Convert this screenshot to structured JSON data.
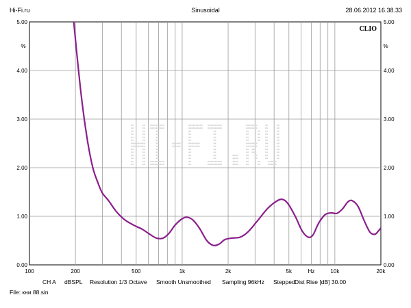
{
  "header": {
    "site": "Hi-Fi.ru",
    "mode": "Sinusoidal",
    "datetime": "28.06.2012 16.38.33"
  },
  "brand": "CLIO",
  "watermark": "HI-FI.RU",
  "footer": {
    "ch": "CH A",
    "unit": "dBSPL",
    "resolution": "Resolution 1/3 Octave",
    "smooth": "Smooth Unsmoothed",
    "sampling": "Sampling 96kHz",
    "stepped": "Stepped",
    "dist_rise": "Dist Rise [dB] 30.00",
    "file": "File: кни 88.sin"
  },
  "chart_data": {
    "type": "line",
    "xscale": "log",
    "xlim": [
      100,
      20000
    ],
    "ylim": [
      0,
      5
    ],
    "y_unit_label": "%",
    "x_unit_label": "Hz",
    "x_tick_labels": [
      {
        "value": 100,
        "label": "100"
      },
      {
        "value": 200,
        "label": "200"
      },
      {
        "value": 500,
        "label": "500"
      },
      {
        "value": 1000,
        "label": "1k"
      },
      {
        "value": 2000,
        "label": "2k"
      },
      {
        "value": 5000,
        "label": "5k"
      },
      {
        "value": 7000,
        "label": "Hz"
      },
      {
        "value": 10000,
        "label": "10k"
      },
      {
        "value": 20000,
        "label": "20k"
      }
    ],
    "y_tick_labels": [
      "0.00",
      "1.00",
      "2.00",
      "3.00",
      "4.00",
      "5.00"
    ],
    "grid": true,
    "series": [
      {
        "color": "#8a1f8c",
        "points": [
          [
            195,
            5.0
          ],
          [
            205,
            4.3
          ],
          [
            220,
            3.4
          ],
          [
            240,
            2.55
          ],
          [
            260,
            2.0
          ],
          [
            280,
            1.7
          ],
          [
            300,
            1.48
          ],
          [
            330,
            1.32
          ],
          [
            370,
            1.1
          ],
          [
            420,
            0.93
          ],
          [
            480,
            0.82
          ],
          [
            550,
            0.73
          ],
          [
            620,
            0.62
          ],
          [
            680,
            0.55
          ],
          [
            750,
            0.55
          ],
          [
            820,
            0.65
          ],
          [
            900,
            0.82
          ],
          [
            1000,
            0.95
          ],
          [
            1080,
            0.98
          ],
          [
            1180,
            0.92
          ],
          [
            1300,
            0.75
          ],
          [
            1450,
            0.5
          ],
          [
            1600,
            0.4
          ],
          [
            1750,
            0.43
          ],
          [
            1900,
            0.52
          ],
          [
            2100,
            0.55
          ],
          [
            2400,
            0.57
          ],
          [
            2700,
            0.68
          ],
          [
            3100,
            0.9
          ],
          [
            3600,
            1.15
          ],
          [
            4100,
            1.3
          ],
          [
            4500,
            1.35
          ],
          [
            4900,
            1.27
          ],
          [
            5500,
            1.0
          ],
          [
            6100,
            0.7
          ],
          [
            6700,
            0.57
          ],
          [
            7200,
            0.62
          ],
          [
            7800,
            0.85
          ],
          [
            8600,
            1.03
          ],
          [
            9400,
            1.07
          ],
          [
            10300,
            1.06
          ],
          [
            11200,
            1.15
          ],
          [
            12200,
            1.3
          ],
          [
            13000,
            1.32
          ],
          [
            14200,
            1.2
          ],
          [
            15600,
            0.9
          ],
          [
            17000,
            0.67
          ],
          [
            18300,
            0.63
          ],
          [
            19300,
            0.7
          ],
          [
            20000,
            0.76
          ]
        ]
      }
    ]
  }
}
